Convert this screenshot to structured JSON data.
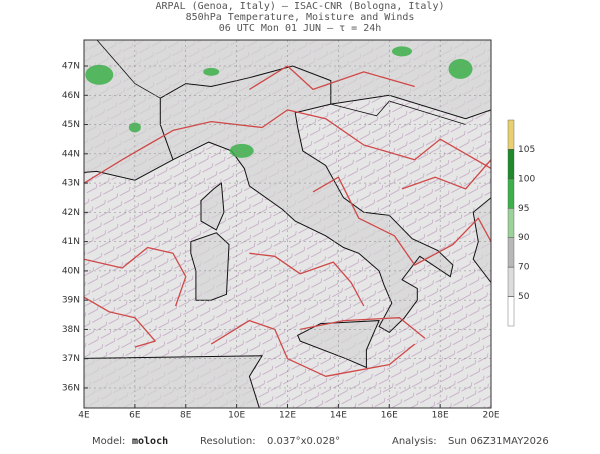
{
  "header": {
    "line1": "ARPAL (Genoa, Italy)  —  ISAC-CNR (Bologna, Italy)",
    "line2": "850hPa Temperature, Moisture and Winds",
    "line3": "06 UTC Mon 01 JUN  —  τ = 24h"
  },
  "map": {
    "lat_labels": [
      "47N",
      "46N",
      "45N",
      "44N",
      "43N",
      "42N",
      "41N",
      "40N",
      "39N",
      "38N",
      "37N",
      "36N"
    ],
    "lon_labels": [
      "4E",
      "6E",
      "8E",
      "10E",
      "12E",
      "14E",
      "16E",
      "18E",
      "20E"
    ]
  },
  "colorbar": {
    "labels": [
      105,
      100,
      95,
      90,
      70,
      50
    ],
    "colors": [
      "#e8d070",
      "#1e8a2a",
      "#3cb04a",
      "#9ad29a",
      "#b8b8b8",
      "#dcdcdc",
      "#ffffff"
    ]
  },
  "footer": {
    "model_label": "Model:",
    "model": "moloch",
    "resolution_label": "Resolution:",
    "resolution": "0.037°x0.028°",
    "analysis_label": "Analysis:",
    "analysis": "Sun 06Z31MAY2026"
  }
}
